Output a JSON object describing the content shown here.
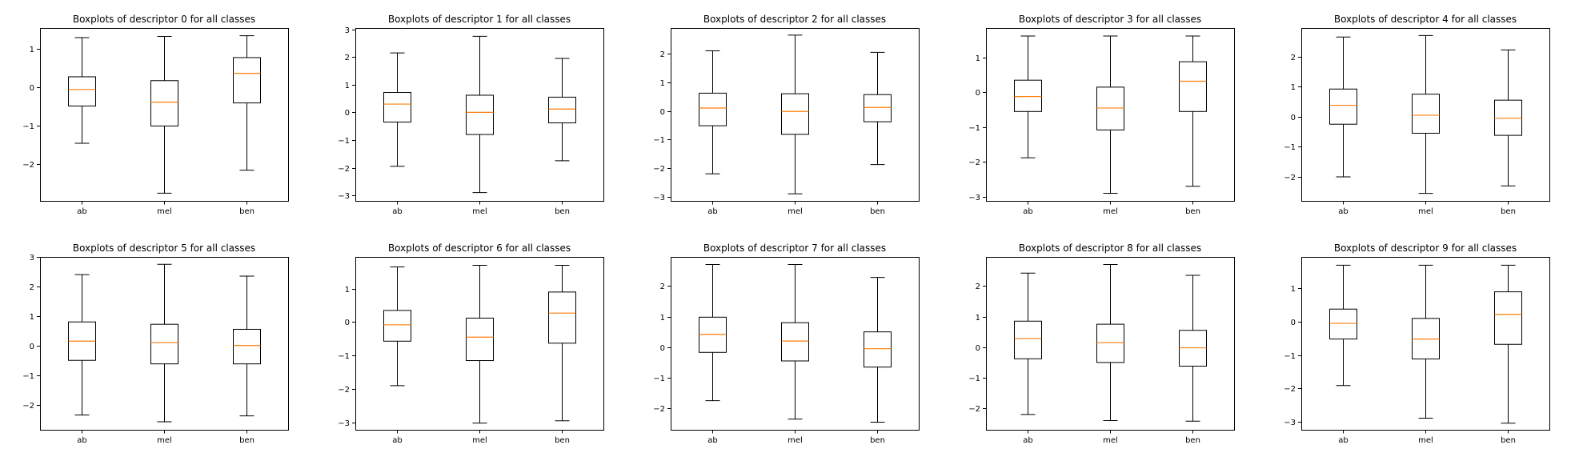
{
  "chart_data": [
    {
      "type": "boxplot",
      "title": "Boxplots of descriptor 0 for all classes",
      "categories": [
        "ab",
        "mel",
        "ben"
      ],
      "ylim": [
        -2.95,
        1.55
      ],
      "yticks": [
        -2,
        -1,
        0,
        1
      ],
      "boxes": [
        {
          "category": "ab",
          "whislo": -1.45,
          "q1": -0.48,
          "med": -0.05,
          "q3": 0.28,
          "whishi": 1.3
        },
        {
          "category": "mel",
          "whislo": -2.75,
          "q1": -1.0,
          "med": -0.38,
          "q3": 0.18,
          "whishi": 1.33
        },
        {
          "category": "ben",
          "whislo": -2.15,
          "q1": -0.4,
          "med": 0.37,
          "q3": 0.78,
          "whishi": 1.35
        }
      ]
    },
    {
      "type": "boxplot",
      "title": "Boxplots of descriptor 1 for all classes",
      "categories": [
        "ab",
        "mel",
        "ben"
      ],
      "ylim": [
        -3.2,
        3.05
      ],
      "yticks": [
        -3,
        -2,
        -1,
        0,
        1,
        2,
        3
      ],
      "boxes": [
        {
          "category": "ab",
          "whislo": -1.95,
          "q1": -0.35,
          "med": 0.3,
          "q3": 0.72,
          "whishi": 2.15
        },
        {
          "category": "mel",
          "whislo": -2.9,
          "q1": -0.8,
          "med": 0.0,
          "q3": 0.62,
          "whishi": 2.75
        },
        {
          "category": "ben",
          "whislo": -1.75,
          "q1": -0.38,
          "med": 0.12,
          "q3": 0.55,
          "whishi": 1.95
        }
      ]
    },
    {
      "type": "boxplot",
      "title": "Boxplots of descriptor 2 for all classes",
      "categories": [
        "ab",
        "mel",
        "ben"
      ],
      "ylim": [
        -3.15,
        2.9
      ],
      "yticks": [
        -3,
        -2,
        -1,
        0,
        1,
        2
      ],
      "boxes": [
        {
          "category": "ab",
          "whislo": -2.2,
          "q1": -0.52,
          "med": 0.1,
          "q3": 0.62,
          "whishi": 2.1
        },
        {
          "category": "mel",
          "whislo": -2.9,
          "q1": -0.82,
          "med": -0.02,
          "q3": 0.6,
          "whishi": 2.65
        },
        {
          "category": "ben",
          "whislo": -1.88,
          "q1": -0.38,
          "med": 0.12,
          "q3": 0.57,
          "whishi": 2.05
        }
      ]
    },
    {
      "type": "boxplot",
      "title": "Boxplots of descriptor 3 for all classes",
      "categories": [
        "ab",
        "mel",
        "ben"
      ],
      "ylim": [
        -3.12,
        1.85
      ],
      "yticks": [
        -3,
        -2,
        -1,
        0,
        1
      ],
      "boxes": [
        {
          "category": "ab",
          "whislo": -1.88,
          "q1": -0.55,
          "med": -0.12,
          "q3": 0.35,
          "whishi": 1.62
        },
        {
          "category": "mel",
          "whislo": -2.9,
          "q1": -1.08,
          "med": -0.45,
          "q3": 0.15,
          "whishi": 1.62
        },
        {
          "category": "ben",
          "whislo": -2.7,
          "q1": -0.55,
          "med": 0.32,
          "q3": 0.88,
          "whishi": 1.62
        }
      ]
    },
    {
      "type": "boxplot",
      "title": "Boxplots of descriptor 4 for all classes",
      "categories": [
        "ab",
        "mel",
        "ben"
      ],
      "ylim": [
        -2.8,
        2.95
      ],
      "yticks": [
        -2,
        -1,
        0,
        1,
        2
      ],
      "boxes": [
        {
          "category": "ab",
          "whislo": -2.0,
          "q1": -0.25,
          "med": 0.38,
          "q3": 0.92,
          "whishi": 2.65
        },
        {
          "category": "mel",
          "whislo": -2.55,
          "q1": -0.55,
          "med": 0.05,
          "q3": 0.75,
          "whishi": 2.7
        },
        {
          "category": "ben",
          "whislo": -2.3,
          "q1": -0.62,
          "med": -0.05,
          "q3": 0.55,
          "whishi": 2.22
        }
      ]
    },
    {
      "type": "boxplot",
      "title": "Boxplots of descriptor 5 for all classes",
      "categories": [
        "ab",
        "mel",
        "ben"
      ],
      "ylim": [
        -2.85,
        3.0
      ],
      "yticks": [
        -2,
        -1,
        0,
        1,
        2,
        3
      ],
      "boxes": [
        {
          "category": "ab",
          "whislo": -2.35,
          "q1": -0.5,
          "med": 0.15,
          "q3": 0.8,
          "whishi": 2.4
        },
        {
          "category": "mel",
          "whislo": -2.58,
          "q1": -0.62,
          "med": 0.1,
          "q3": 0.72,
          "whishi": 2.75
        },
        {
          "category": "ben",
          "whislo": -2.38,
          "q1": -0.62,
          "med": 0.0,
          "q3": 0.55,
          "whishi": 2.35
        }
      ]
    },
    {
      "type": "boxplot",
      "title": "Boxplots of descriptor 6 for all classes",
      "categories": [
        "ab",
        "mel",
        "ben"
      ],
      "ylim": [
        -3.22,
        1.95
      ],
      "yticks": [
        -3,
        -2,
        -1,
        0,
        1
      ],
      "boxes": [
        {
          "category": "ab",
          "whislo": -1.9,
          "q1": -0.57,
          "med": -0.08,
          "q3": 0.35,
          "whishi": 1.65
        },
        {
          "category": "mel",
          "whislo": -3.02,
          "q1": -1.15,
          "med": -0.45,
          "q3": 0.12,
          "whishi": 1.7
        },
        {
          "category": "ben",
          "whislo": -2.95,
          "q1": -0.63,
          "med": 0.27,
          "q3": 0.9,
          "whishi": 1.7
        }
      ]
    },
    {
      "type": "boxplot",
      "title": "Boxplots of descriptor 7 for all classes",
      "categories": [
        "ab",
        "mel",
        "ben"
      ],
      "ylim": [
        -2.7,
        2.95
      ],
      "yticks": [
        -2,
        -1,
        0,
        1,
        2
      ],
      "boxes": [
        {
          "category": "ab",
          "whislo": -1.75,
          "q1": -0.17,
          "med": 0.42,
          "q3": 0.98,
          "whishi": 2.7
        },
        {
          "category": "mel",
          "whislo": -2.35,
          "q1": -0.45,
          "med": 0.2,
          "q3": 0.8,
          "whishi": 2.7
        },
        {
          "category": "ben",
          "whislo": -2.45,
          "q1": -0.65,
          "med": -0.05,
          "q3": 0.5,
          "whishi": 2.28
        }
      ]
    },
    {
      "type": "boxplot",
      "title": "Boxplots of descriptor 8 for all classes",
      "categories": [
        "ab",
        "mel",
        "ben"
      ],
      "ylim": [
        -2.7,
        2.95
      ],
      "yticks": [
        -2,
        -1,
        0,
        1,
        2
      ],
      "boxes": [
        {
          "category": "ab",
          "whislo": -2.2,
          "q1": -0.38,
          "med": 0.28,
          "q3": 0.85,
          "whishi": 2.42
        },
        {
          "category": "mel",
          "whislo": -2.4,
          "q1": -0.5,
          "med": 0.15,
          "q3": 0.75,
          "whishi": 2.7
        },
        {
          "category": "ben",
          "whislo": -2.42,
          "q1": -0.62,
          "med": -0.02,
          "q3": 0.55,
          "whishi": 2.35
        }
      ]
    },
    {
      "type": "boxplot",
      "title": "Boxplots of descriptor 9 for all classes",
      "categories": [
        "ab",
        "mel",
        "ben"
      ],
      "ylim": [
        -3.25,
        1.95
      ],
      "yticks": [
        -3,
        -2,
        -1,
        0,
        1
      ],
      "boxes": [
        {
          "category": "ab",
          "whislo": -1.92,
          "q1": -0.52,
          "med": -0.05,
          "q3": 0.38,
          "whishi": 1.7
        },
        {
          "category": "mel",
          "whislo": -2.9,
          "q1": -1.12,
          "med": -0.52,
          "q3": 0.1,
          "whishi": 1.7
        },
        {
          "category": "ben",
          "whislo": -3.05,
          "q1": -0.68,
          "med": 0.22,
          "q3": 0.9,
          "whishi": 1.7
        }
      ]
    }
  ]
}
